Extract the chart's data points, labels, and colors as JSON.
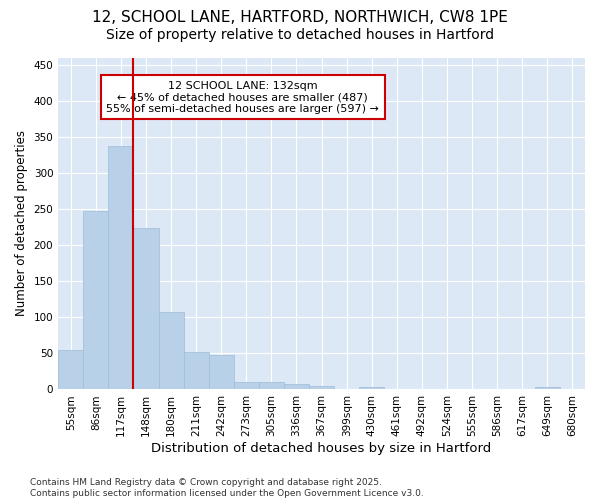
{
  "title1": "12, SCHOOL LANE, HARTFORD, NORTHWICH, CW8 1PE",
  "title2": "Size of property relative to detached houses in Hartford",
  "xlabel": "Distribution of detached houses by size in Hartford",
  "ylabel": "Number of detached properties",
  "categories": [
    "55sqm",
    "86sqm",
    "117sqm",
    "148sqm",
    "180sqm",
    "211sqm",
    "242sqm",
    "273sqm",
    "305sqm",
    "336sqm",
    "367sqm",
    "399sqm",
    "430sqm",
    "461sqm",
    "492sqm",
    "524sqm",
    "555sqm",
    "586sqm",
    "617sqm",
    "649sqm",
    "680sqm"
  ],
  "bar_heights": [
    55,
    247,
    338,
    224,
    107,
    52,
    48,
    10,
    10,
    8,
    5,
    0,
    3,
    0,
    0,
    0,
    0,
    0,
    0,
    3,
    0
  ],
  "bar_color": "#b8d0e8",
  "bar_edge_color": "#a0bcd8",
  "red_line_index": 2,
  "annotation_title": "12 SCHOOL LANE: 132sqm",
  "annotation_line1": "← 45% of detached houses are smaller (487)",
  "annotation_line2": "55% of semi-detached houses are larger (597) →",
  "annotation_box_color": "#ffffff",
  "annotation_edge_color": "#cc0000",
  "red_line_color": "#cc0000",
  "ylim": [
    0,
    460
  ],
  "yticks": [
    0,
    50,
    100,
    150,
    200,
    250,
    300,
    350,
    400,
    450
  ],
  "background_color": "#dce8f5",
  "grid_color": "#ffffff",
  "footer1": "Contains HM Land Registry data © Crown copyright and database right 2025.",
  "footer2": "Contains public sector information licensed under the Open Government Licence v3.0.",
  "title1_fontsize": 11,
  "title2_fontsize": 10,
  "xlabel_fontsize": 9.5,
  "ylabel_fontsize": 8.5,
  "tick_fontsize": 7.5,
  "annot_fontsize": 8,
  "footer_fontsize": 6.5
}
